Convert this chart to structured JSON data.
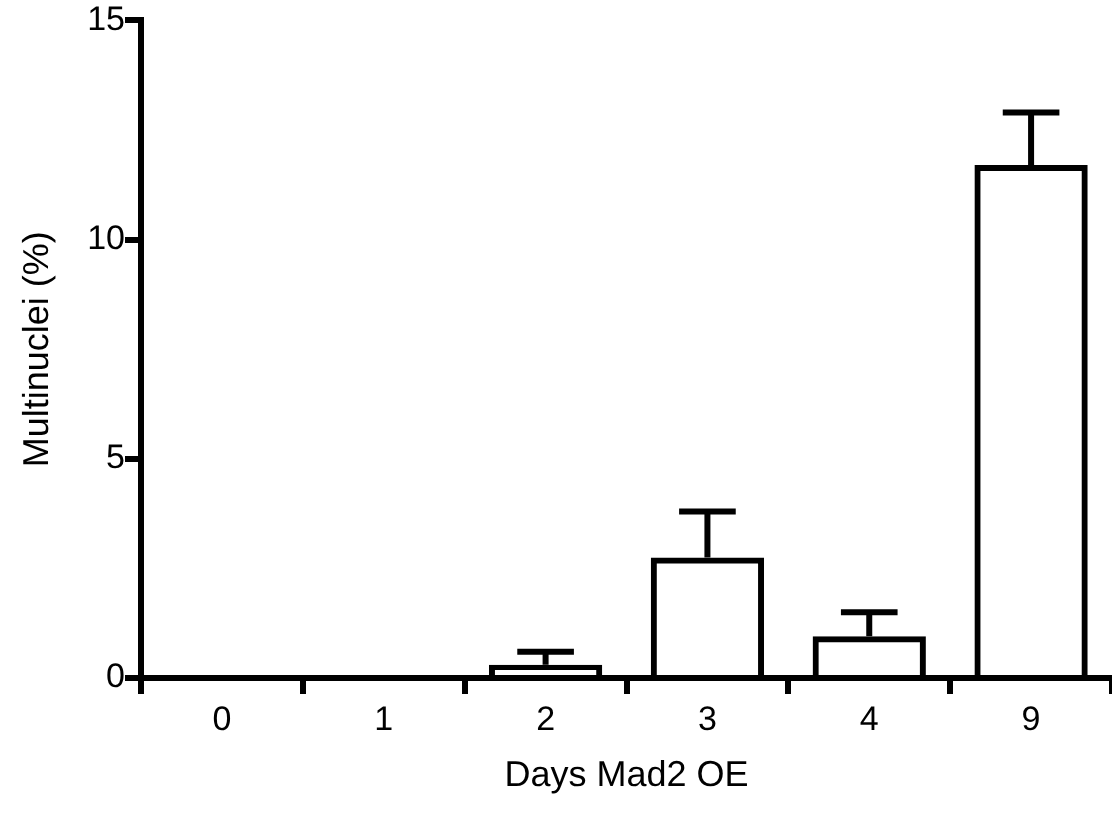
{
  "chart_data": {
    "type": "bar",
    "xlabel": "Days Mad2 OE",
    "ylabel": "Multinuclei (%)",
    "categories": [
      "0",
      "1",
      "2",
      "3",
      "4",
      "9"
    ],
    "values": [
      0,
      0,
      0.3,
      2.75,
      0.95,
      11.7
    ],
    "errors": [
      null,
      null,
      [
        0.3,
        0.6
      ],
      [
        2.75,
        3.8
      ],
      [
        0.95,
        1.5
      ],
      [
        11.7,
        12.9
      ]
    ],
    "color": "#000000",
    "ylim": [
      0,
      15
    ],
    "yticks": [
      0,
      5,
      10,
      15
    ],
    "grid": false,
    "legend": false
  }
}
